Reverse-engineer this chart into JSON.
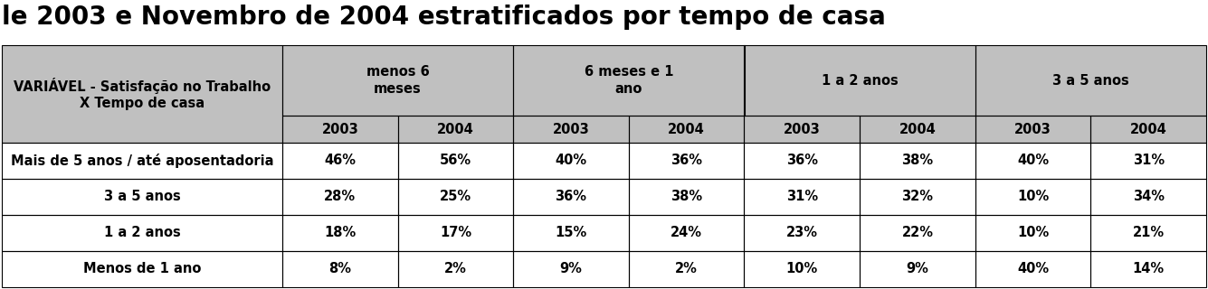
{
  "title": "le 2003 e Novembro de 2004 estratificados por tempo de casa",
  "header_row1_label": "VARIÁVEL - Satisfação no Trabalho\nX Tempo de casa",
  "col_groups": [
    {
      "label": "menos 6\nmeses"
    },
    {
      "label": "6 meses e 1\nano"
    },
    {
      "label": "1 a 2 anos"
    },
    {
      "label": "3 a 5 anos"
    }
  ],
  "year_headers": [
    "2003",
    "2004",
    "2003",
    "2004",
    "2003",
    "2004",
    "2003",
    "2004"
  ],
  "row_labels": [
    "Mais de 5 anos / até aposentadoria",
    "3 a 5 anos",
    "1 a 2 anos",
    "Menos de 1 ano"
  ],
  "data": [
    [
      "46%",
      "56%",
      "40%",
      "36%",
      "36%",
      "38%",
      "40%",
      "31%"
    ],
    [
      "28%",
      "25%",
      "36%",
      "38%",
      "31%",
      "32%",
      "10%",
      "34%"
    ],
    [
      "18%",
      "17%",
      "15%",
      "24%",
      "23%",
      "22%",
      "10%",
      "21%"
    ],
    [
      "8%",
      "2%",
      "9%",
      "2%",
      "10%",
      "9%",
      "40%",
      "14%"
    ]
  ],
  "header_bg": "#c0c0c0",
  "white_bg": "#ffffff",
  "border_color": "#000000",
  "title_fontsize": 20,
  "header_fontsize": 10.5,
  "cell_fontsize": 10.5
}
